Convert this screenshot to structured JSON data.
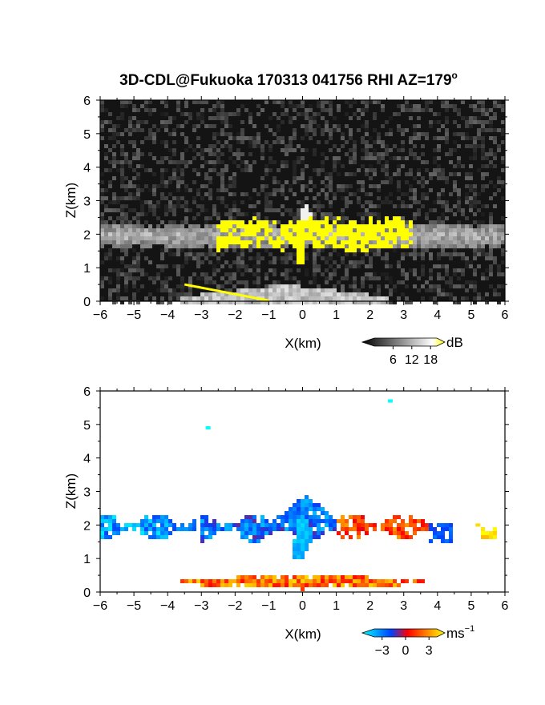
{
  "figure": {
    "title": "3D-CDL@Fukuoka 170313 041756 RHI AZ=179",
    "title_superscript": "o"
  },
  "chart_data": [
    {
      "type": "heatmap",
      "name": "reflectivity",
      "xlabel": "X(km)",
      "ylabel": "Z(km)",
      "xlim": [
        -6,
        6
      ],
      "ylim": [
        0,
        6
      ],
      "xticks": [
        "−6",
        "−5",
        "−4",
        "−3",
        "−2",
        "−1",
        "0",
        "1",
        "2",
        "3",
        "4",
        "5",
        "6"
      ],
      "yticks": [
        "0",
        "1",
        "2",
        "3",
        "4",
        "5",
        "6"
      ],
      "colorbar": {
        "unit": "dB",
        "ticks": [
          "6",
          "12",
          "18"
        ],
        "tick_values": [
          6,
          12,
          18
        ],
        "range": [
          0,
          20
        ],
        "colors": [
          "#000000",
          "#ffffff",
          "#ffff00"
        ]
      },
      "background": "noise",
      "features": [
        {
          "kind": "cloud-layer",
          "x": [
            -6,
            6
          ],
          "z_center": 1.95,
          "thickness": 0.35
        },
        {
          "kind": "strong-echo",
          "x": [
            -2.5,
            3.3
          ],
          "z_center": 2.0,
          "thickness": 0.5,
          "color": "#ffff00"
        },
        {
          "kind": "peak",
          "x": 0.1,
          "z": 2.95
        },
        {
          "kind": "fall-streak",
          "x": [
            0.0,
            -0.1
          ],
          "z": [
            2.4,
            1.1
          ]
        },
        {
          "kind": "ground-clutter",
          "x": [
            -3.6,
            2.5
          ],
          "z_top": 0.5
        }
      ]
    },
    {
      "type": "heatmap",
      "name": "doppler-velocity",
      "xlabel": "X(km)",
      "ylabel": "Z(km)",
      "xlim": [
        -6,
        6
      ],
      "ylim": [
        0,
        6
      ],
      "xticks": [
        "−6",
        "−5",
        "−4",
        "−3",
        "−2",
        "−1",
        "0",
        "1",
        "2",
        "3",
        "4",
        "5",
        "6"
      ],
      "yticks": [
        "0",
        "1",
        "2",
        "3",
        "4",
        "5",
        "6"
      ],
      "colorbar": {
        "unit": "ms",
        "unit_superscript": "−1",
        "ticks": [
          "−3",
          "0",
          "3"
        ],
        "tick_values": [
          -3,
          0,
          3
        ],
        "range": [
          -4,
          4
        ],
        "colors": [
          "#00ffff",
          "#0040ff",
          "#ff0000",
          "#ffff00"
        ]
      },
      "features": [
        {
          "kind": "cloud-layer",
          "x": [
            -6.0,
            -3.2
          ],
          "z_center": 1.95,
          "velocity": -2.5
        },
        {
          "kind": "cloud-layer",
          "x": [
            -3.0,
            1.0
          ],
          "z_center": 1.9,
          "velocity": -1.8
        },
        {
          "kind": "cloud-layer",
          "x": [
            1.0,
            3.8
          ],
          "z_center": 1.95,
          "velocity": 1.5
        },
        {
          "kind": "fall-streak",
          "x": [
            0.0,
            -0.1
          ],
          "z": [
            2.2,
            1.0
          ],
          "velocity": -3.5
        },
        {
          "kind": "low-layer",
          "x": [
            -3.6,
            3.6
          ],
          "z_center": 0.3,
          "velocity": 2.0
        },
        {
          "kind": "isolated",
          "x": -2.8,
          "z": 4.9,
          "velocity": -4
        },
        {
          "kind": "isolated",
          "x": 2.6,
          "z": 5.7,
          "velocity": -4
        },
        {
          "kind": "isolated",
          "x": 5.2,
          "z": 2.0,
          "velocity": 3.5
        }
      ]
    }
  ]
}
